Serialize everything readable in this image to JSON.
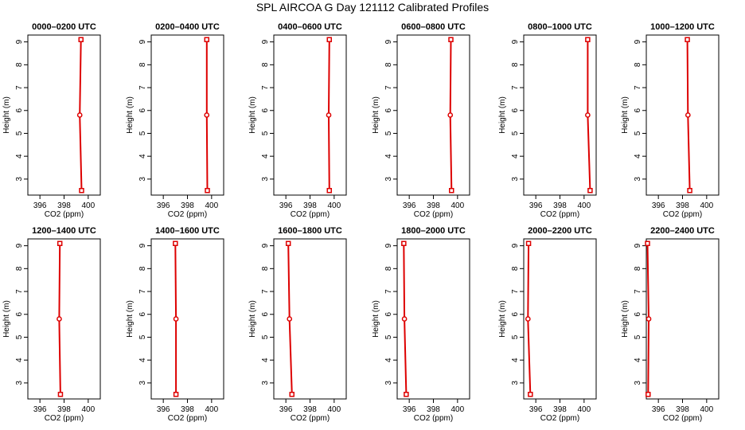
{
  "title": "SPL AIRCOA G  Day 121112  Calibrated Profiles",
  "colors": {
    "series": "#dd0000",
    "axis": "#000000",
    "background": "#ffffff"
  },
  "chart_data": [
    {
      "type": "line",
      "title": "0000–0200 UTC",
      "xlabel": "CO2 (ppm)",
      "ylabel": "Height (m)",
      "xlim": [
        395,
        401
      ],
      "ylim": [
        2.3,
        9.3
      ],
      "xticks": [
        "396",
        "398",
        "400"
      ],
      "yticks": [
        "3",
        "4",
        "5",
        "6",
        "7",
        "8",
        "9"
      ],
      "points": [
        {
          "x": 399.4,
          "y": 9.1
        },
        {
          "x": 399.3,
          "y": 5.8
        },
        {
          "x": 399.45,
          "y": 2.5
        }
      ]
    },
    {
      "type": "line",
      "title": "0200–0400 UTC",
      "xlabel": "CO2 (ppm)",
      "ylabel": "Height (m)",
      "xlim": [
        395,
        401
      ],
      "ylim": [
        2.3,
        9.3
      ],
      "xticks": [
        "396",
        "398",
        "400"
      ],
      "yticks": [
        "3",
        "4",
        "5",
        "6",
        "7",
        "8",
        "9"
      ],
      "points": [
        {
          "x": 399.6,
          "y": 9.1
        },
        {
          "x": 399.6,
          "y": 5.8
        },
        {
          "x": 399.65,
          "y": 2.5
        }
      ]
    },
    {
      "type": "line",
      "title": "0400–0600 UTC",
      "xlabel": "CO2 (ppm)",
      "ylabel": "Height (m)",
      "xlim": [
        395,
        401
      ],
      "ylim": [
        2.3,
        9.3
      ],
      "xticks": [
        "396",
        "398",
        "400"
      ],
      "yticks": [
        "3",
        "4",
        "5",
        "6",
        "7",
        "8",
        "9"
      ],
      "points": [
        {
          "x": 399.6,
          "y": 9.1
        },
        {
          "x": 399.55,
          "y": 5.8
        },
        {
          "x": 399.6,
          "y": 2.5
        }
      ]
    },
    {
      "type": "line",
      "title": "0600–0800 UTC",
      "xlabel": "CO2 (ppm)",
      "ylabel": "Height (m)",
      "xlim": [
        395,
        401
      ],
      "ylim": [
        2.3,
        9.3
      ],
      "xticks": [
        "396",
        "398",
        "400"
      ],
      "yticks": [
        "3",
        "4",
        "5",
        "6",
        "7",
        "8",
        "9"
      ],
      "points": [
        {
          "x": 399.45,
          "y": 9.1
        },
        {
          "x": 399.4,
          "y": 5.8
        },
        {
          "x": 399.5,
          "y": 2.5
        }
      ]
    },
    {
      "type": "line",
      "title": "0800–1000 UTC",
      "xlabel": "CO2 (ppm)",
      "ylabel": "Height (m)",
      "xlim": [
        395,
        401
      ],
      "ylim": [
        2.3,
        9.3
      ],
      "xticks": [
        "396",
        "398",
        "400"
      ],
      "yticks": [
        "3",
        "4",
        "5",
        "6",
        "7",
        "8",
        "9"
      ],
      "points": [
        {
          "x": 400.3,
          "y": 9.1
        },
        {
          "x": 400.3,
          "y": 5.8
        },
        {
          "x": 400.5,
          "y": 2.5
        }
      ]
    },
    {
      "type": "line",
      "title": "1000–1200 UTC",
      "xlabel": "CO2 (ppm)",
      "ylabel": "Height (m)",
      "xlim": [
        395,
        401
      ],
      "ylim": [
        2.3,
        9.3
      ],
      "xticks": [
        "396",
        "398",
        "400"
      ],
      "yticks": [
        "3",
        "4",
        "5",
        "6",
        "7",
        "8",
        "9"
      ],
      "points": [
        {
          "x": 398.4,
          "y": 9.1
        },
        {
          "x": 398.45,
          "y": 5.8
        },
        {
          "x": 398.6,
          "y": 2.5
        }
      ]
    },
    {
      "type": "line",
      "title": "1200–1400 UTC",
      "xlabel": "CO2 (ppm)",
      "ylabel": "Height (m)",
      "xlim": [
        395,
        401
      ],
      "ylim": [
        2.3,
        9.3
      ],
      "xticks": [
        "396",
        "398",
        "400"
      ],
      "yticks": [
        "3",
        "4",
        "5",
        "6",
        "7",
        "8",
        "9"
      ],
      "points": [
        {
          "x": 397.65,
          "y": 9.1
        },
        {
          "x": 397.6,
          "y": 5.8
        },
        {
          "x": 397.7,
          "y": 2.5
        }
      ]
    },
    {
      "type": "line",
      "title": "1400–1600 UTC",
      "xlabel": "CO2 (ppm)",
      "ylabel": "Height (m)",
      "xlim": [
        395,
        401
      ],
      "ylim": [
        2.3,
        9.3
      ],
      "xticks": [
        "396",
        "398",
        "400"
      ],
      "yticks": [
        "3",
        "4",
        "5",
        "6",
        "7",
        "8",
        "9"
      ],
      "points": [
        {
          "x": 397.0,
          "y": 9.1
        },
        {
          "x": 397.05,
          "y": 5.8
        },
        {
          "x": 397.05,
          "y": 2.5
        }
      ]
    },
    {
      "type": "line",
      "title": "1600–1800 UTC",
      "xlabel": "CO2 (ppm)",
      "ylabel": "Height (m)",
      "xlim": [
        395,
        401
      ],
      "ylim": [
        2.3,
        9.3
      ],
      "xticks": [
        "396",
        "398",
        "400"
      ],
      "yticks": [
        "3",
        "4",
        "5",
        "6",
        "7",
        "8",
        "9"
      ],
      "points": [
        {
          "x": 396.2,
          "y": 9.1
        },
        {
          "x": 396.3,
          "y": 5.8
        },
        {
          "x": 396.5,
          "y": 2.5
        }
      ]
    },
    {
      "type": "line",
      "title": "1800–2000 UTC",
      "xlabel": "CO2 (ppm)",
      "ylabel": "Height (m)",
      "xlim": [
        395,
        401
      ],
      "ylim": [
        2.3,
        9.3
      ],
      "xticks": [
        "396",
        "398",
        "400"
      ],
      "yticks": [
        "3",
        "4",
        "5",
        "6",
        "7",
        "8",
        "9"
      ],
      "points": [
        {
          "x": 395.55,
          "y": 9.1
        },
        {
          "x": 395.6,
          "y": 5.8
        },
        {
          "x": 395.75,
          "y": 2.5
        }
      ]
    },
    {
      "type": "line",
      "title": "2000–2200 UTC",
      "xlabel": "CO2 (ppm)",
      "ylabel": "Height (m)",
      "xlim": [
        395,
        401
      ],
      "ylim": [
        2.3,
        9.3
      ],
      "xticks": [
        "396",
        "398",
        "400"
      ],
      "yticks": [
        "3",
        "4",
        "5",
        "6",
        "7",
        "8",
        "9"
      ],
      "points": [
        {
          "x": 395.4,
          "y": 9.1
        },
        {
          "x": 395.35,
          "y": 5.8
        },
        {
          "x": 395.55,
          "y": 2.5
        }
      ]
    },
    {
      "type": "line",
      "title": "2200–2400 UTC",
      "xlabel": "CO2 (ppm)",
      "ylabel": "Height (m)",
      "xlim": [
        395,
        401
      ],
      "ylim": [
        2.3,
        9.3
      ],
      "xticks": [
        "396",
        "398",
        "400"
      ],
      "yticks": [
        "3",
        "4",
        "5",
        "6",
        "7",
        "8",
        "9"
      ],
      "points": [
        {
          "x": 395.1,
          "y": 9.1
        },
        {
          "x": 395.2,
          "y": 5.8
        },
        {
          "x": 395.15,
          "y": 2.5
        }
      ]
    }
  ]
}
